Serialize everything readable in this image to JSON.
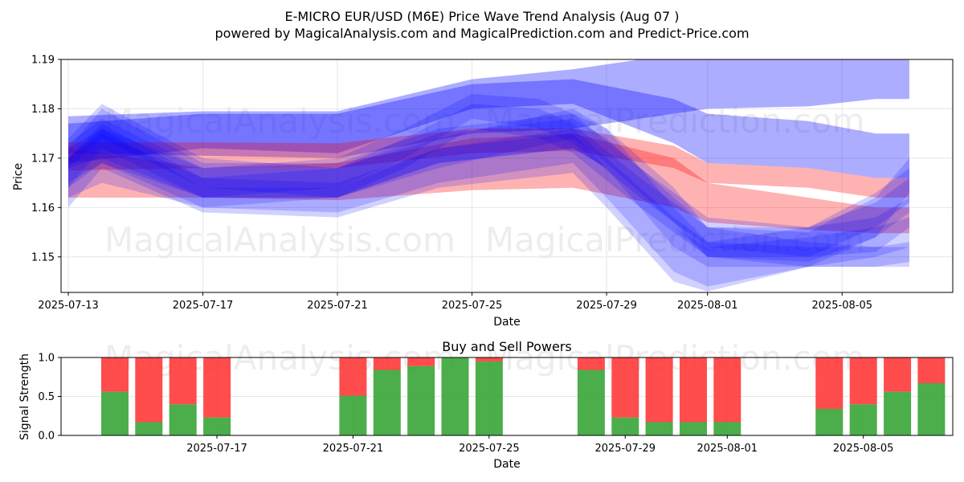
{
  "title": "E-MICRO EUR/USD (M6E) Price Wave Trend Analysis (Aug 07 )",
  "subtitle": "powered by MagicalAnalysis.com and MagicalPrediction.com and Predict-Price.com",
  "watermarks": [
    "MagicalAnalysis.com",
    "MagicalPrediction.com"
  ],
  "colors": {
    "blue_band": "#0000ff",
    "red_band": "#ff0000",
    "buy": "#2ca02c",
    "sell": "#ff2d2d"
  },
  "chart_data": [
    {
      "type": "area",
      "xlabel": "Date",
      "ylabel": "Price",
      "ylim": [
        1.1428,
        1.19
      ],
      "x_range": [
        "2025-07-13",
        "2025-08-07"
      ],
      "x_ticks": [
        "2025-07-13",
        "2025-07-17",
        "2025-07-21",
        "2025-07-25",
        "2025-07-29",
        "2025-08-01",
        "2025-08-05"
      ],
      "y_ticks": [
        "1.15",
        "1.16",
        "1.17",
        "1.18",
        "1.19"
      ],
      "grid": true,
      "series": [
        {
          "color": "blue",
          "x": [
            "2025-07-13",
            "2025-07-17",
            "2025-07-21",
            "2025-07-25",
            "2025-07-28",
            "2025-08-01",
            "2025-08-04",
            "2025-08-06",
            "2025-08-07"
          ],
          "upper": [
            1.1785,
            1.1795,
            1.1795,
            1.186,
            1.188,
            1.192,
            1.193,
            1.1925,
            1.1925
          ],
          "lower": [
            1.171,
            1.1705,
            1.17,
            1.175,
            1.176,
            1.18,
            1.1805,
            1.182,
            1.182
          ]
        },
        {
          "color": "blue",
          "x": [
            "2025-07-13",
            "2025-07-17",
            "2025-07-21",
            "2025-07-25",
            "2025-07-28",
            "2025-07-31",
            "2025-08-01",
            "2025-08-04",
            "2025-08-06",
            "2025-08-07"
          ],
          "upper": [
            1.177,
            1.179,
            1.179,
            1.185,
            1.186,
            1.182,
            1.179,
            1.1775,
            1.175,
            1.175
          ],
          "lower": [
            1.169,
            1.172,
            1.171,
            1.18,
            1.181,
            1.173,
            1.169,
            1.168,
            1.166,
            1.166
          ]
        },
        {
          "color": "red",
          "x": [
            "2025-07-13",
            "2025-07-17",
            "2025-07-21",
            "2025-07-25",
            "2025-07-28",
            "2025-07-31",
            "2025-08-01",
            "2025-08-04",
            "2025-08-06",
            "2025-08-07"
          ],
          "upper": [
            1.1732,
            1.1732,
            1.173,
            1.176,
            1.176,
            1.1725,
            1.169,
            1.168,
            1.166,
            1.166
          ],
          "lower": [
            1.1675,
            1.168,
            1.168,
            1.171,
            1.1715,
            1.168,
            1.165,
            1.164,
            1.162,
            1.162
          ]
        },
        {
          "color": "red",
          "x": [
            "2025-07-13",
            "2025-07-17",
            "2025-07-21",
            "2025-07-25",
            "2025-07-28",
            "2025-07-31",
            "2025-08-01",
            "2025-08-04",
            "2025-08-06",
            "2025-08-07"
          ],
          "upper": [
            1.172,
            1.168,
            1.169,
            1.174,
            1.175,
            1.17,
            1.165,
            1.162,
            1.16,
            1.16
          ],
          "lower": [
            1.162,
            1.162,
            1.1615,
            1.1635,
            1.164,
            1.16,
            1.157,
            1.1555,
            1.1548,
            1.1548
          ]
        },
        {
          "color": "blue",
          "x": [
            "2025-07-13",
            "2025-07-14",
            "2025-07-17",
            "2025-07-21",
            "2025-07-23",
            "2025-07-25",
            "2025-07-27",
            "2025-07-28",
            "2025-07-30",
            "2025-08-01",
            "2025-08-04",
            "2025-08-06",
            "2025-08-07"
          ],
          "upper": [
            1.173,
            1.178,
            1.168,
            1.17,
            1.176,
            1.183,
            1.182,
            1.179,
            1.168,
            1.158,
            1.156,
            1.158,
            1.162
          ],
          "lower": [
            1.168,
            1.17,
            1.162,
            1.164,
            1.17,
            1.178,
            1.176,
            1.173,
            1.162,
            1.152,
            1.15,
            1.151,
            1.156
          ]
        },
        {
          "color": "blue",
          "x": [
            "2025-07-13",
            "2025-07-14",
            "2025-07-17",
            "2025-07-21",
            "2025-07-23",
            "2025-07-25",
            "2025-07-27",
            "2025-07-28",
            "2025-07-30",
            "2025-08-01",
            "2025-08-04",
            "2025-08-06",
            "2025-08-07"
          ],
          "upper": [
            1.17,
            1.177,
            1.166,
            1.168,
            1.174,
            1.181,
            1.18,
            1.177,
            1.166,
            1.156,
            1.155,
            1.162,
            1.17
          ],
          "lower": [
            1.165,
            1.169,
            1.16,
            1.162,
            1.168,
            1.176,
            1.174,
            1.171,
            1.16,
            1.15,
            1.149,
            1.154,
            1.163
          ]
        },
        {
          "color": "blue",
          "x": [
            "2025-07-13",
            "2025-07-14",
            "2025-07-17",
            "2025-07-21",
            "2025-07-24",
            "2025-07-28",
            "2025-07-29",
            "2025-07-31",
            "2025-08-01",
            "2025-08-04",
            "2025-08-06",
            "2025-08-07"
          ],
          "upper": [
            1.17,
            1.175,
            1.166,
            1.165,
            1.172,
            1.176,
            1.17,
            1.158,
            1.153,
            1.156,
            1.161,
            1.166
          ],
          "lower": [
            1.162,
            1.165,
            1.16,
            1.159,
            1.165,
            1.169,
            1.162,
            1.147,
            1.144,
            1.148,
            1.154,
            1.159
          ]
        },
        {
          "color": "blue",
          "x": [
            "2025-07-13",
            "2025-07-14",
            "2025-07-17",
            "2025-07-21",
            "2025-07-24",
            "2025-07-28",
            "2025-07-29",
            "2025-07-31",
            "2025-08-01",
            "2025-08-04",
            "2025-08-06",
            "2025-08-07"
          ],
          "upper": [
            1.172,
            1.176,
            1.164,
            1.164,
            1.172,
            1.175,
            1.168,
            1.156,
            1.152,
            1.154,
            1.156,
            1.158
          ],
          "lower": [
            1.16,
            1.168,
            1.159,
            1.158,
            1.164,
            1.167,
            1.16,
            1.145,
            1.143,
            1.148,
            1.15,
            1.152
          ]
        },
        {
          "color": "blue",
          "x": [
            "2025-07-13",
            "2025-07-14",
            "2025-07-17",
            "2025-07-21",
            "2025-07-24",
            "2025-07-28",
            "2025-07-29",
            "2025-07-31",
            "2025-08-01",
            "2025-08-04",
            "2025-08-06",
            "2025-08-07"
          ],
          "upper": [
            1.174,
            1.181,
            1.17,
            1.168,
            1.174,
            1.18,
            1.176,
            1.164,
            1.156,
            1.153,
            1.152,
            1.152
          ],
          "lower": [
            1.168,
            1.174,
            1.164,
            1.162,
            1.168,
            1.174,
            1.169,
            1.157,
            1.15,
            1.148,
            1.148,
            1.148
          ]
        },
        {
          "color": "blue",
          "x": [
            "2025-07-13",
            "2025-07-14",
            "2025-07-17",
            "2025-07-21",
            "2025-07-24",
            "2025-07-28",
            "2025-07-29",
            "2025-07-31",
            "2025-08-01",
            "2025-08-04",
            "2025-08-06",
            "2025-08-07"
          ],
          "upper": [
            1.172,
            1.18,
            1.169,
            1.169,
            1.176,
            1.179,
            1.176,
            1.16,
            1.153,
            1.152,
            1.152,
            1.153
          ],
          "lower": [
            1.164,
            1.172,
            1.162,
            1.162,
            1.169,
            1.172,
            1.168,
            1.152,
            1.148,
            1.148,
            1.148,
            1.149
          ]
        },
        {
          "color": "blue",
          "x": [
            "2025-07-13",
            "2025-07-14",
            "2025-07-17",
            "2025-07-21",
            "2025-07-24",
            "2025-07-28",
            "2025-07-29",
            "2025-07-31",
            "2025-08-01",
            "2025-08-04",
            "2025-08-06",
            "2025-08-07"
          ],
          "upper": [
            1.17,
            1.176,
            1.168,
            1.168,
            1.175,
            1.178,
            1.174,
            1.162,
            1.156,
            1.156,
            1.163,
            1.168
          ],
          "lower": [
            1.164,
            1.169,
            1.162,
            1.162,
            1.169,
            1.172,
            1.168,
            1.156,
            1.15,
            1.15,
            1.156,
            1.161
          ]
        }
      ]
    },
    {
      "type": "bar",
      "title": "Buy and Sell Powers",
      "xlabel": "Date",
      "ylabel": "Signal Strength",
      "ylim": [
        0,
        1.0
      ],
      "y_ticks": [
        "0.0",
        "0.5",
        "1.0"
      ],
      "x_ticks": [
        "2025-07-17",
        "2025-07-21",
        "2025-07-25",
        "2025-07-29",
        "2025-08-01",
        "2025-08-05"
      ],
      "grid": true,
      "categories": [
        "2025-07-14",
        "2025-07-15",
        "2025-07-16",
        "2025-07-17",
        "2025-07-21",
        "2025-07-22",
        "2025-07-23",
        "2025-07-24",
        "2025-07-25",
        "2025-07-28",
        "2025-07-29",
        "2025-07-30",
        "2025-07-31",
        "2025-08-01",
        "2025-08-04",
        "2025-08-05",
        "2025-08-06",
        "2025-08-07"
      ],
      "series": [
        {
          "name": "Buy",
          "values": [
            0.56,
            0.17,
            0.4,
            0.23,
            0.51,
            0.84,
            0.89,
            1.0,
            0.95,
            0.84,
            0.23,
            0.17,
            0.17,
            0.17,
            0.34,
            0.4,
            0.56,
            0.67
          ]
        },
        {
          "name": "Sell",
          "values": [
            0.44,
            0.83,
            0.6,
            0.77,
            0.49,
            0.16,
            0.11,
            0.0,
            0.05,
            0.16,
            0.77,
            0.83,
            0.83,
            0.83,
            0.66,
            0.6,
            0.44,
            0.33
          ]
        }
      ]
    }
  ]
}
